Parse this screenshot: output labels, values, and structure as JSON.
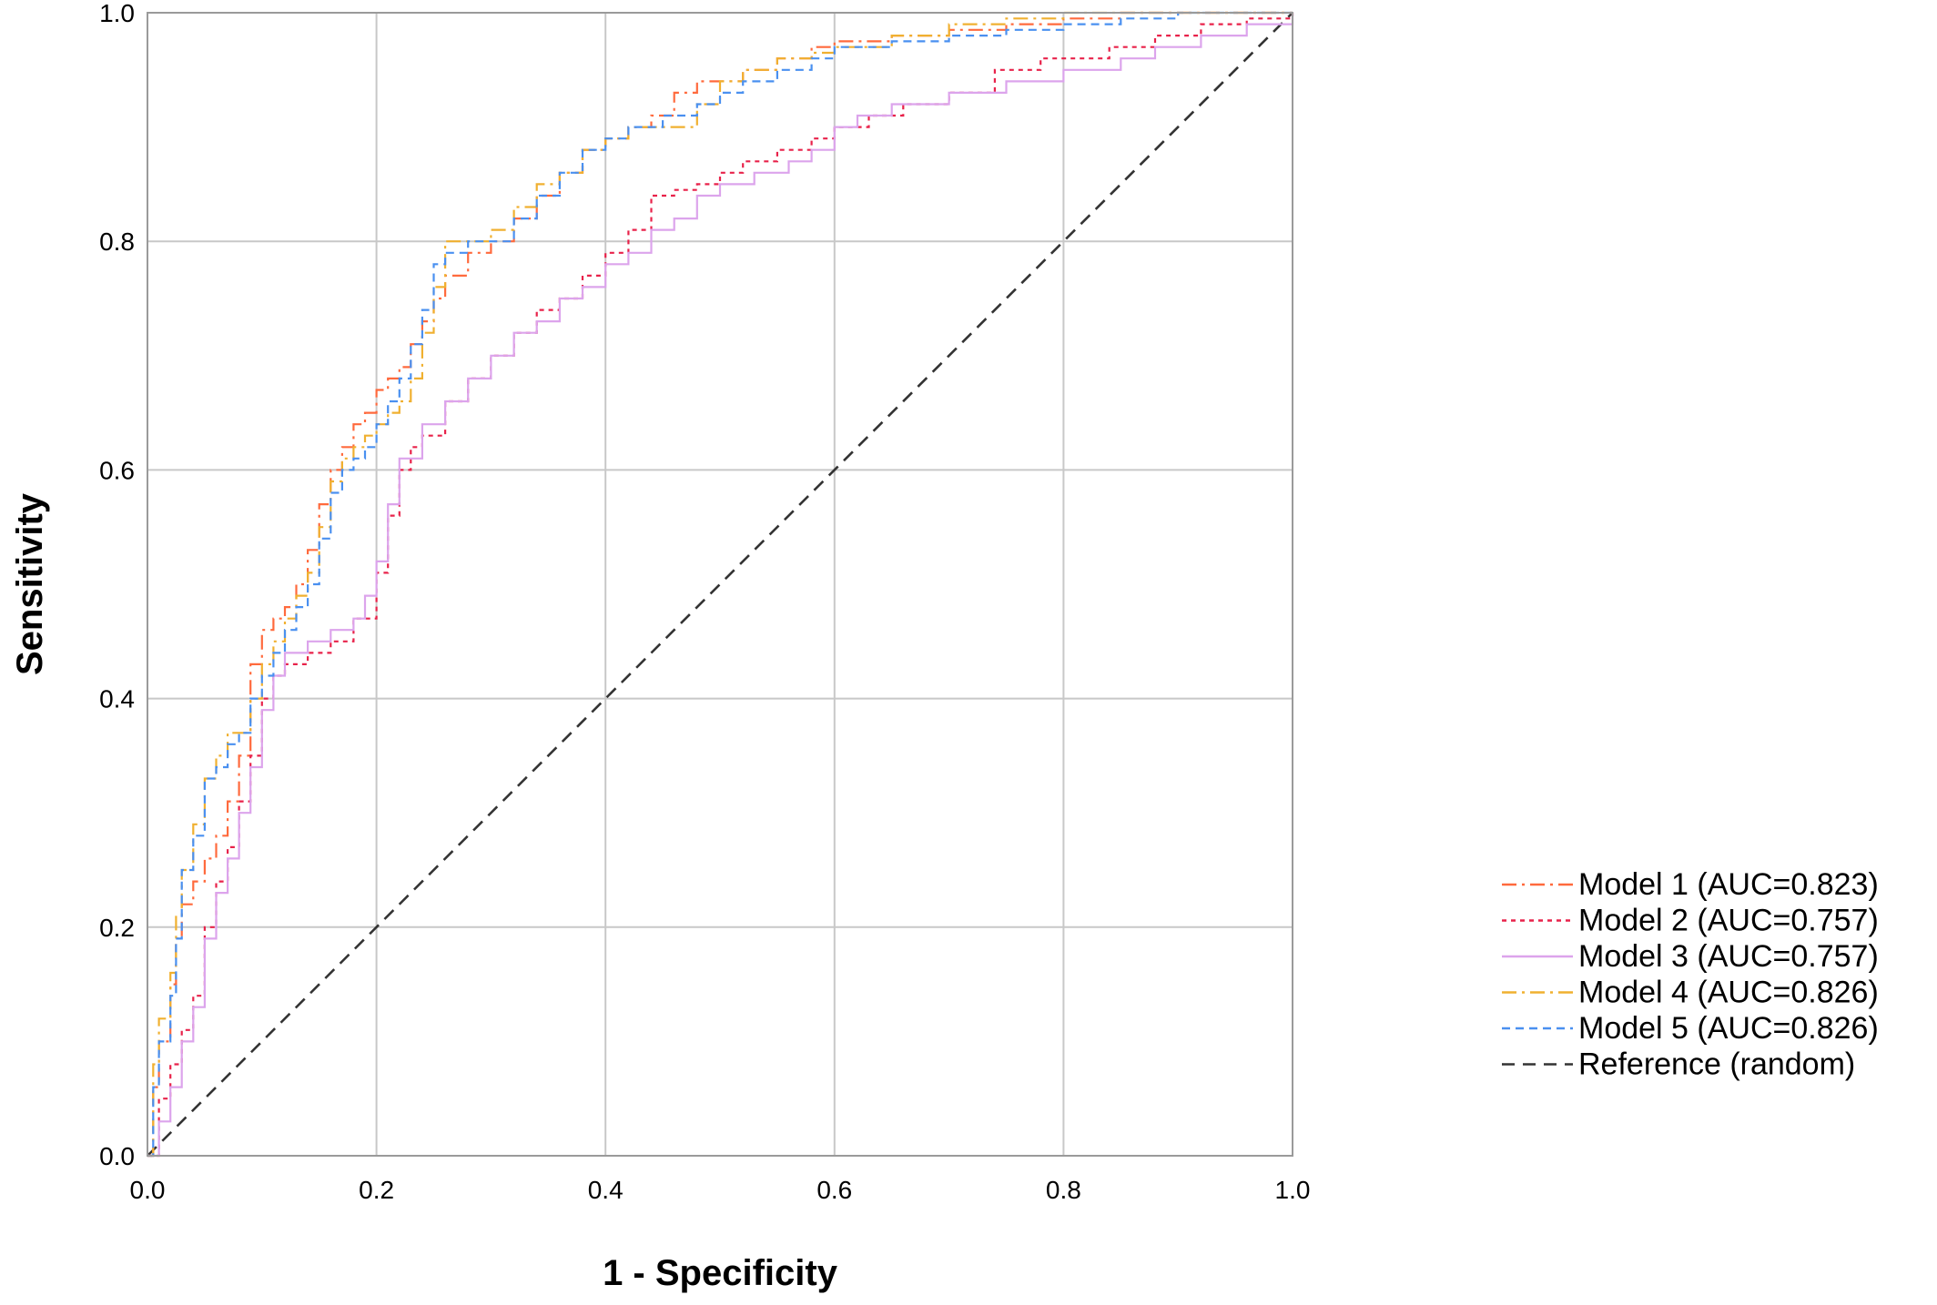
{
  "chart_data": {
    "type": "line",
    "title": "",
    "xlabel": "1 - Specificity",
    "ylabel": "Sensitivity",
    "xlim": [
      0,
      1
    ],
    "ylim": [
      0,
      1
    ],
    "x_ticks": [
      "0.0",
      "0.2",
      "0.4",
      "0.6",
      "0.8",
      "1.0"
    ],
    "y_ticks": [
      "0.0",
      "0.2",
      "0.4",
      "0.6",
      "0.8",
      "1.0"
    ],
    "grid": true,
    "legend_position": "right-bottom",
    "series": [
      {
        "name": "Model 1 (AUC=0.823)",
        "color": "#ff6a3d",
        "dash": "dashdot",
        "x": [
          0,
          0.005,
          0.01,
          0.02,
          0.025,
          0.03,
          0.04,
          0.05,
          0.06,
          0.07,
          0.08,
          0.09,
          0.1,
          0.11,
          0.12,
          0.13,
          0.14,
          0.15,
          0.16,
          0.17,
          0.18,
          0.19,
          0.2,
          0.21,
          0.22,
          0.23,
          0.24,
          0.25,
          0.26,
          0.28,
          0.3,
          0.32,
          0.34,
          0.36,
          0.38,
          0.4,
          0.42,
          0.44,
          0.46,
          0.48,
          0.5,
          0.52,
          0.55,
          0.58,
          0.6,
          0.65,
          0.7,
          0.75,
          0.8,
          0.85,
          0.9,
          0.95,
          1.0
        ],
        "y": [
          0,
          0.06,
          0.1,
          0.15,
          0.19,
          0.22,
          0.24,
          0.26,
          0.28,
          0.31,
          0.35,
          0.43,
          0.46,
          0.47,
          0.48,
          0.5,
          0.53,
          0.57,
          0.6,
          0.62,
          0.64,
          0.65,
          0.67,
          0.68,
          0.69,
          0.71,
          0.73,
          0.75,
          0.77,
          0.79,
          0.8,
          0.82,
          0.84,
          0.86,
          0.88,
          0.89,
          0.9,
          0.91,
          0.93,
          0.94,
          0.94,
          0.95,
          0.96,
          0.97,
          0.975,
          0.98,
          0.985,
          0.99,
          0.995,
          1.0,
          1.0,
          1.0,
          1.0
        ]
      },
      {
        "name": "Model 2 (AUC=0.757)",
        "color": "#e8224a",
        "dash": "dot",
        "x": [
          0,
          0.01,
          0.02,
          0.03,
          0.04,
          0.05,
          0.06,
          0.07,
          0.08,
          0.09,
          0.1,
          0.11,
          0.12,
          0.14,
          0.16,
          0.18,
          0.2,
          0.21,
          0.22,
          0.23,
          0.24,
          0.26,
          0.28,
          0.3,
          0.32,
          0.34,
          0.36,
          0.38,
          0.4,
          0.42,
          0.44,
          0.46,
          0.48,
          0.5,
          0.52,
          0.55,
          0.58,
          0.6,
          0.63,
          0.66,
          0.7,
          0.74,
          0.78,
          0.8,
          0.84,
          0.88,
          0.92,
          0.96,
          1.0
        ],
        "y": [
          0,
          0.05,
          0.08,
          0.11,
          0.14,
          0.2,
          0.24,
          0.27,
          0.31,
          0.35,
          0.4,
          0.42,
          0.43,
          0.44,
          0.45,
          0.47,
          0.51,
          0.56,
          0.6,
          0.62,
          0.63,
          0.66,
          0.68,
          0.7,
          0.72,
          0.74,
          0.75,
          0.77,
          0.79,
          0.81,
          0.84,
          0.845,
          0.85,
          0.86,
          0.87,
          0.88,
          0.89,
          0.9,
          0.91,
          0.92,
          0.93,
          0.95,
          0.96,
          0.96,
          0.97,
          0.98,
          0.99,
          0.995,
          1.0
        ]
      },
      {
        "name": "Model 3 (AUC=0.757)",
        "color": "#dca4ec",
        "dash": "solid",
        "x": [
          0,
          0.01,
          0.02,
          0.03,
          0.04,
          0.05,
          0.06,
          0.07,
          0.08,
          0.09,
          0.1,
          0.11,
          0.12,
          0.14,
          0.16,
          0.18,
          0.19,
          0.2,
          0.21,
          0.22,
          0.24,
          0.26,
          0.28,
          0.3,
          0.32,
          0.34,
          0.36,
          0.38,
          0.4,
          0.42,
          0.44,
          0.46,
          0.48,
          0.5,
          0.53,
          0.56,
          0.58,
          0.6,
          0.62,
          0.65,
          0.7,
          0.75,
          0.8,
          0.85,
          0.88,
          0.92,
          0.96,
          1.0
        ],
        "y": [
          0,
          0.03,
          0.06,
          0.1,
          0.13,
          0.19,
          0.23,
          0.26,
          0.3,
          0.34,
          0.39,
          0.42,
          0.44,
          0.45,
          0.46,
          0.47,
          0.49,
          0.52,
          0.57,
          0.61,
          0.64,
          0.66,
          0.68,
          0.7,
          0.72,
          0.73,
          0.75,
          0.76,
          0.78,
          0.79,
          0.81,
          0.82,
          0.84,
          0.85,
          0.86,
          0.87,
          0.88,
          0.9,
          0.91,
          0.92,
          0.93,
          0.94,
          0.95,
          0.96,
          0.97,
          0.98,
          0.99,
          1.0
        ]
      },
      {
        "name": "Model 4 (AUC=0.826)",
        "color": "#f0b030",
        "dash": "dashdot",
        "x": [
          0,
          0.005,
          0.01,
          0.02,
          0.025,
          0.03,
          0.04,
          0.05,
          0.06,
          0.07,
          0.08,
          0.09,
          0.1,
          0.11,
          0.12,
          0.13,
          0.14,
          0.15,
          0.16,
          0.17,
          0.18,
          0.19,
          0.2,
          0.21,
          0.22,
          0.23,
          0.24,
          0.25,
          0.26,
          0.28,
          0.3,
          0.32,
          0.34,
          0.36,
          0.38,
          0.4,
          0.42,
          0.45,
          0.48,
          0.5,
          0.52,
          0.55,
          0.58,
          0.6,
          0.65,
          0.7,
          0.75,
          0.8,
          0.85,
          0.9,
          0.95,
          1.0
        ],
        "y": [
          0,
          0.08,
          0.12,
          0.16,
          0.21,
          0.25,
          0.29,
          0.33,
          0.35,
          0.37,
          0.37,
          0.4,
          0.43,
          0.45,
          0.47,
          0.49,
          0.51,
          0.55,
          0.59,
          0.61,
          0.62,
          0.63,
          0.64,
          0.65,
          0.66,
          0.68,
          0.72,
          0.76,
          0.8,
          0.8,
          0.81,
          0.83,
          0.85,
          0.86,
          0.88,
          0.89,
          0.9,
          0.9,
          0.92,
          0.94,
          0.95,
          0.96,
          0.965,
          0.97,
          0.98,
          0.99,
          0.995,
          1.0,
          1.0,
          1.0,
          1.0,
          1.0
        ]
      },
      {
        "name": "Model 5 (AUC=0.826)",
        "color": "#4a90f0",
        "dash": "dash",
        "x": [
          0,
          0.005,
          0.01,
          0.02,
          0.025,
          0.03,
          0.04,
          0.05,
          0.06,
          0.07,
          0.08,
          0.09,
          0.1,
          0.11,
          0.12,
          0.13,
          0.14,
          0.15,
          0.16,
          0.17,
          0.18,
          0.19,
          0.2,
          0.21,
          0.22,
          0.23,
          0.24,
          0.25,
          0.26,
          0.28,
          0.3,
          0.32,
          0.34,
          0.36,
          0.38,
          0.4,
          0.42,
          0.45,
          0.48,
          0.5,
          0.52,
          0.55,
          0.58,
          0.6,
          0.65,
          0.7,
          0.75,
          0.8,
          0.85,
          0.9,
          0.95,
          1.0
        ],
        "y": [
          0,
          0.06,
          0.1,
          0.14,
          0.19,
          0.25,
          0.28,
          0.33,
          0.34,
          0.36,
          0.37,
          0.4,
          0.42,
          0.44,
          0.46,
          0.48,
          0.5,
          0.54,
          0.58,
          0.6,
          0.61,
          0.62,
          0.64,
          0.66,
          0.68,
          0.71,
          0.74,
          0.78,
          0.79,
          0.8,
          0.8,
          0.82,
          0.84,
          0.86,
          0.88,
          0.89,
          0.9,
          0.91,
          0.92,
          0.93,
          0.94,
          0.95,
          0.96,
          0.97,
          0.975,
          0.98,
          0.985,
          0.99,
          0.995,
          1.0,
          1.0,
          1.0
        ]
      },
      {
        "name": "Reference (random)",
        "color": "#333333",
        "dash": "longdash",
        "x": [
          0,
          1
        ],
        "y": [
          0,
          1
        ]
      }
    ]
  }
}
